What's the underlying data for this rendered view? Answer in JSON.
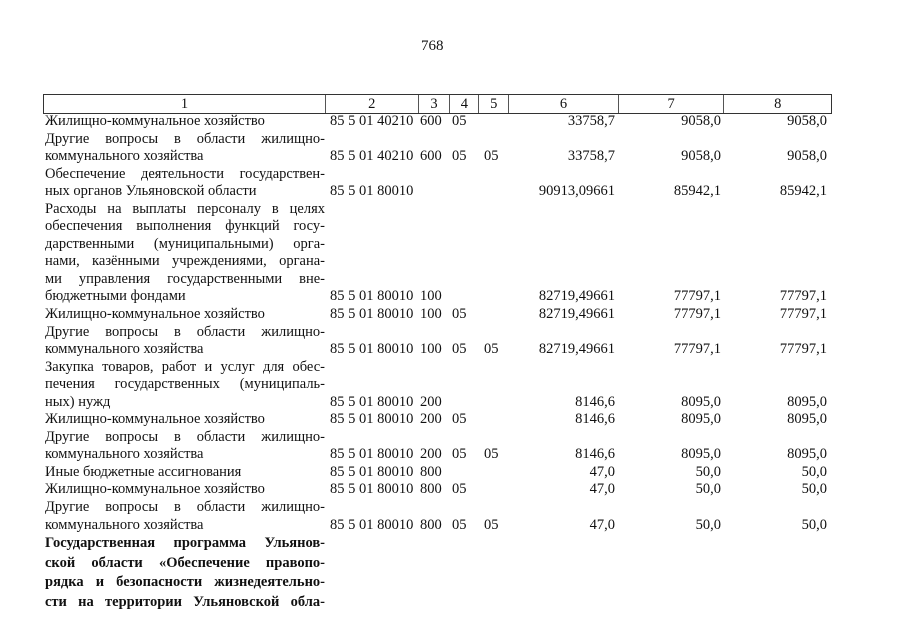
{
  "page_number": "768",
  "header": [
    "1",
    "2",
    "3",
    "4",
    "5",
    "6",
    "7",
    "8"
  ],
  "rows": [
    {
      "lines": [
        "Жилищно-коммунальное хозяйство"
      ],
      "code": "85 5 01 40210",
      "c3": "600",
      "c4": "05",
      "c5": "",
      "v6": "33758,7",
      "v7": "9058,0",
      "v8": "9058,0"
    },
    {
      "lines": [
        "Другие вопросы в области жилищно-",
        "коммунального хозяйства"
      ],
      "code": "85 5 01 40210",
      "c3": "600",
      "c4": "05",
      "c5": "05",
      "v6": "33758,7",
      "v7": "9058,0",
      "v8": "9058,0"
    },
    {
      "lines": [
        "Обеспечение деятельности государствен-",
        "ных органов Ульяновской области"
      ],
      "code": "85 5 01 80010",
      "c3": "",
      "c4": "",
      "c5": "",
      "v6": "90913,09661",
      "v7": "85942,1",
      "v8": "85942,1"
    },
    {
      "lines": [
        "Расходы на выплаты персоналу в целях",
        "обеспечения выполнения функций госу-",
        "дарственными (муниципальными) орга-",
        "нами, казёнными учреждениями, органа-",
        "ми управления государственными вне-",
        "бюджетными фондами"
      ],
      "code": "85 5 01 80010",
      "c3": "100",
      "c4": "",
      "c5": "",
      "v6": "82719,49661",
      "v7": "77797,1",
      "v8": "77797,1"
    },
    {
      "lines": [
        "Жилищно-коммунальное хозяйство"
      ],
      "code": "85 5 01 80010",
      "c3": "100",
      "c4": "05",
      "c5": "",
      "v6": "82719,49661",
      "v7": "77797,1",
      "v8": "77797,1"
    },
    {
      "lines": [
        "Другие вопросы в области жилищно-",
        "коммунального хозяйства"
      ],
      "code": "85 5 01 80010",
      "c3": "100",
      "c4": "05",
      "c5": "05",
      "v6": "82719,49661",
      "v7": "77797,1",
      "v8": "77797,1"
    },
    {
      "lines": [
        "Закупка товаров, работ и услуг для обес-",
        "печения государственных (муниципаль-",
        "ных) нужд"
      ],
      "code": "85 5 01 80010",
      "c3": "200",
      "c4": "",
      "c5": "",
      "v6": "8146,6",
      "v7": "8095,0",
      "v8": "8095,0"
    },
    {
      "lines": [
        "Жилищно-коммунальное хозяйство"
      ],
      "code": "85 5 01 80010",
      "c3": "200",
      "c4": "05",
      "c5": "",
      "v6": "8146,6",
      "v7": "8095,0",
      "v8": "8095,0"
    },
    {
      "lines": [
        "Другие вопросы в области жилищно-",
        "коммунального хозяйства"
      ],
      "code": "85 5 01 80010",
      "c3": "200",
      "c4": "05",
      "c5": "05",
      "v6": "8146,6",
      "v7": "8095,0",
      "v8": "8095,0"
    },
    {
      "lines": [
        "Иные бюджетные ассигнования"
      ],
      "code": "85 5 01 80010",
      "c3": "800",
      "c4": "",
      "c5": "",
      "v6": "47,0",
      "v7": "50,0",
      "v8": "50,0"
    },
    {
      "lines": [
        "Жилищно-коммунальное хозяйство"
      ],
      "code": "85 5 01 80010",
      "c3": "800",
      "c4": "05",
      "c5": "",
      "v6": "47,0",
      "v7": "50,0",
      "v8": "50,0"
    },
    {
      "lines": [
        "Другие вопросы в области жилищно-",
        "коммунального хозяйства"
      ],
      "code": "85 5 01 80010",
      "c3": "800",
      "c4": "05",
      "c5": "05",
      "v6": "47,0",
      "v7": "50,0",
      "v8": "50,0"
    },
    {
      "bold": true,
      "lines": [
        "Государственная программа Ульянов-",
        "ской области «Обеспечение правопо-",
        "рядка и безопасности жизнедеятельно-",
        "сти на территории Ульяновской обла-"
      ],
      "code": "",
      "c3": "",
      "c4": "",
      "c5": "",
      "v6": "",
      "v7": "",
      "v8": ""
    }
  ]
}
